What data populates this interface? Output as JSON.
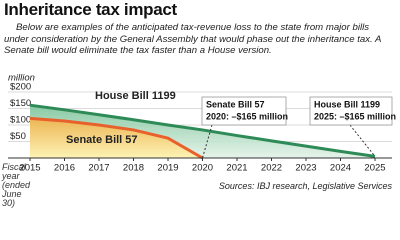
{
  "chart_data": {
    "type": "area",
    "title": "Inheritance tax impact",
    "subtitle": "Below are examples of the anticipated tax-revenue loss to the state from major bills under consideration by the General Assembly that would phase out the inheritance tax. A Senate bill would eliminate the tax faster than a House version.",
    "y_label": "million",
    "x_label": "Fiscal year (ended June 30)",
    "source": "Sources: IBJ research, Legislative Services",
    "categories": [
      "2015",
      "2016",
      "2017",
      "2018",
      "2019",
      "2020",
      "2021",
      "2022",
      "2023",
      "2024",
      "2025"
    ],
    "series": [
      {
        "name": "House Bill 1199",
        "color": "#2e8b57",
        "values": [
          160,
          146,
          131,
          116,
          100,
          85,
          68,
          52,
          36,
          20,
          5
        ]
      },
      {
        "name": "Senate Bill 57",
        "color": "#e8612c",
        "values": [
          120,
          112,
          100,
          85,
          60,
          0,
          null,
          null,
          null,
          null,
          null
        ]
      }
    ],
    "ylim": [
      0,
      200
    ],
    "yticks": [
      {
        "value": 50,
        "label": "$50"
      },
      {
        "value": 100,
        "label": "$100"
      },
      {
        "value": 150,
        "label": "$150"
      },
      {
        "value": 200,
        "label": "$200"
      }
    ],
    "grid": true,
    "annotations": [
      {
        "lines": [
          "Senate Bill 57",
          "2020: –$165 million"
        ]
      },
      {
        "lines": [
          "House Bill 1199",
          "2025: –$165 million"
        ]
      }
    ]
  }
}
